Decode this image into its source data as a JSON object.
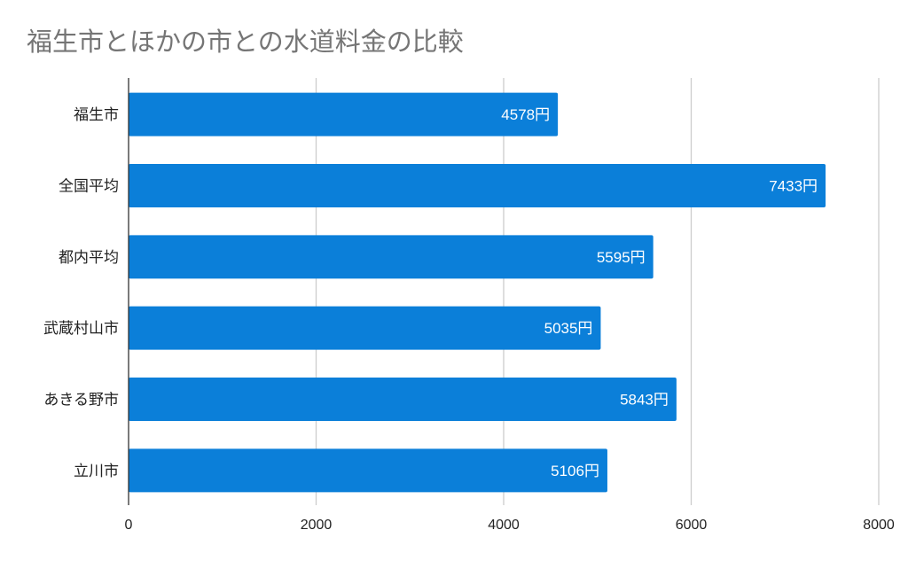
{
  "chart_data": {
    "type": "bar",
    "orientation": "horizontal",
    "title": "福生市とほかの市との水道料金の比較",
    "categories": [
      "福生市",
      "全国平均",
      "都内平均",
      "武蔵村山市",
      "あきる野市",
      "立川市"
    ],
    "values": [
      4578,
      7433,
      5595,
      5035,
      5843,
      5106
    ],
    "data_labels": [
      "4578円",
      "7433円",
      "5595円",
      "5035円",
      "5843円",
      "5106円"
    ],
    "xlim": [
      0,
      8000
    ],
    "xticks": [
      "0",
      "2000",
      "4000",
      "6000",
      "8000"
    ],
    "grid": "vertical",
    "legend": "none",
    "colors": {
      "bar": "#0b7fd9",
      "grid": "#cccccc",
      "title": "#757575"
    }
  }
}
